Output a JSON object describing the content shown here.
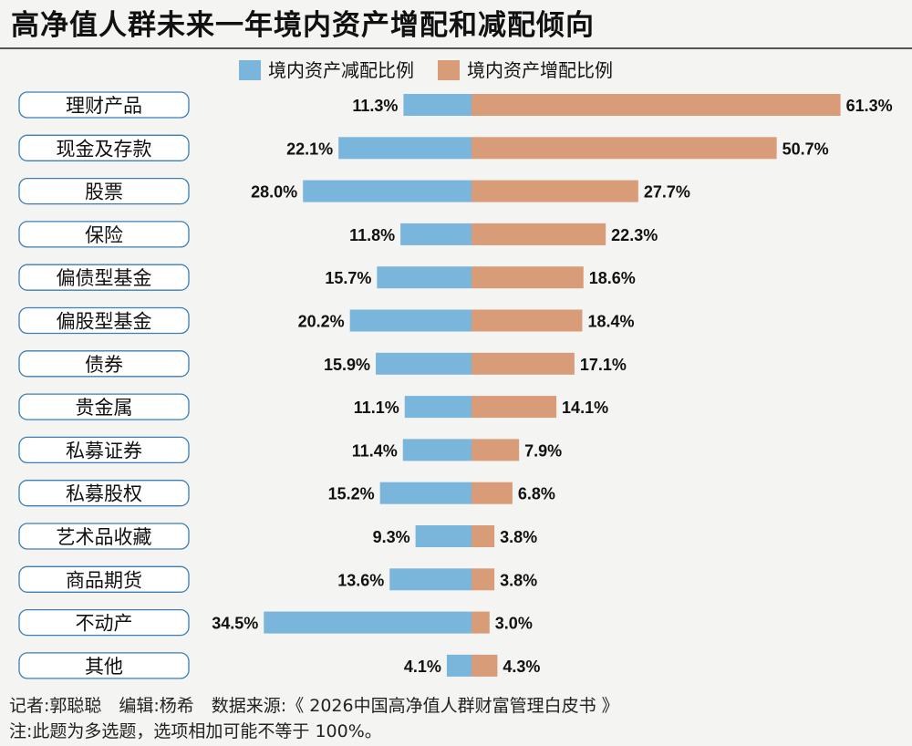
{
  "title": "高净值人群未来一年境内资产增配和减配倾向",
  "legend": {
    "decrease": "境内资产减配比例",
    "increase": "境内资产增配比例"
  },
  "colors": {
    "decrease": "#7ab5dc",
    "increase": "#d89c78",
    "label_border": "#3a7fb5",
    "label_bg": "#ffffff"
  },
  "chart_data": {
    "type": "bar",
    "orientation": "horizontal-diverging",
    "title": "高净值人群未来一年境内资产增配和减配倾向",
    "categories": [
      "理财产品",
      "现金及存款",
      "股票",
      "保险",
      "偏债型基金",
      "偏股型基金",
      "债券",
      "贵金属",
      "私募证券",
      "私募股权",
      "艺术品收藏",
      "商品期货",
      "不动产",
      "其他"
    ],
    "series": [
      {
        "name": "境内资产减配比例",
        "values": [
          11.3,
          22.1,
          28.0,
          11.8,
          15.7,
          20.2,
          15.9,
          11.1,
          11.4,
          15.2,
          9.3,
          13.6,
          34.5,
          4.1
        ],
        "labels": [
          "11.3%",
          "22.1%",
          "28.0%",
          "11.8%",
          "15.7%",
          "20.2%",
          "15.9%",
          "11.1%",
          "11.4%",
          "15.2%",
          "9.3%",
          "13.6%",
          "34.5%",
          "4.1%"
        ]
      },
      {
        "name": "境内资产增配比例",
        "values": [
          61.3,
          50.7,
          27.7,
          22.3,
          18.6,
          18.4,
          17.1,
          14.1,
          7.9,
          6.8,
          3.8,
          3.8,
          3.0,
          4.3
        ],
        "labels": [
          "61.3%",
          "50.7%",
          "27.7%",
          "22.3%",
          "18.6%",
          "18.4%",
          "17.1%",
          "14.1%",
          "7.9%",
          "6.8%",
          "3.8%",
          "3.8%",
          "3.0%",
          "4.3%"
        ]
      }
    ],
    "unit": "%"
  },
  "footer": {
    "credits": "记者:郭聪聪　编辑:杨希　数据来源:《 2026中国高净值人群财富管理白皮书 》",
    "note": "注:此题为多选题，选项相加可能不等于 100%。"
  }
}
